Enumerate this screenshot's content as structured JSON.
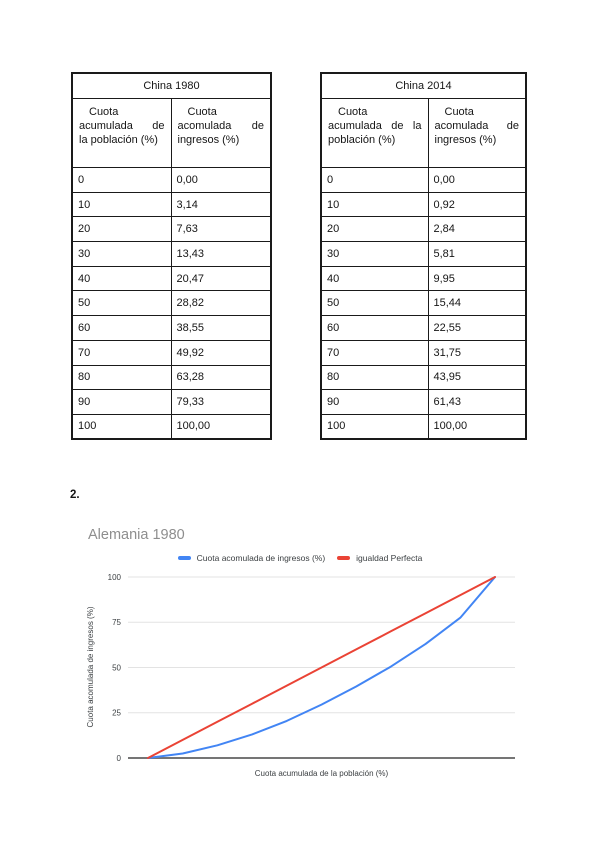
{
  "page": {
    "background": "#ffffff"
  },
  "exercise": {
    "item2_label": "2."
  },
  "tables": [
    {
      "title": "China 1980",
      "headers": [
        {
          "name": "population",
          "lines": [
            "Cuota",
            "acumulada de",
            "la población (%)"
          ]
        },
        {
          "name": "income",
          "lines": [
            "Cuota",
            "acomulada de",
            "ingresos (%)"
          ]
        }
      ],
      "rows": [
        [
          "0",
          "0,00"
        ],
        [
          "10",
          "3,14"
        ],
        [
          "20",
          "7,63"
        ],
        [
          "30",
          "13,43"
        ],
        [
          "40",
          "20,47"
        ],
        [
          "50",
          "28,82"
        ],
        [
          "60",
          "38,55"
        ],
        [
          "70",
          "49,92"
        ],
        [
          "80",
          "63,28"
        ],
        [
          "90",
          "79,33"
        ],
        [
          "100",
          "100,00"
        ]
      ]
    },
    {
      "title": "China 2014",
      "headers": [
        {
          "name": "population",
          "lines": [
            "Cuota",
            "acumulada de la",
            "población (%)"
          ]
        },
        {
          "name": "income",
          "lines": [
            "Cuota",
            "acomulada de",
            "ingresos (%)"
          ]
        }
      ],
      "rows": [
        [
          "0",
          "0,00"
        ],
        [
          "10",
          "0,92"
        ],
        [
          "20",
          "2,84"
        ],
        [
          "30",
          "5,81"
        ],
        [
          "40",
          "9,95"
        ],
        [
          "50",
          "15,44"
        ],
        [
          "60",
          "22,55"
        ],
        [
          "70",
          "31,75"
        ],
        [
          "80",
          "43,95"
        ],
        [
          "90",
          "61,43"
        ],
        [
          "100",
          "100,00"
        ]
      ]
    }
  ],
  "chart_data": {
    "type": "line",
    "title": "Alemania 1980",
    "xlabel": "Cuota acumulada de la población (%)",
    "ylabel": "Cuota acomulada de ingresos (%)",
    "x": [
      0,
      10,
      20,
      30,
      40,
      50,
      60,
      70,
      80,
      90,
      100
    ],
    "series": [
      {
        "name": "Cuota acomulada de ingresos (%)",
        "color": "#4285f4",
        "values": [
          0,
          2.5,
          7,
          13,
          20.5,
          29.5,
          39.5,
          50.5,
          63,
          77.5,
          100
        ]
      },
      {
        "name": "igualdad Perfecta",
        "color": "#ea4335",
        "values": [
          0,
          10,
          20,
          30,
          40,
          50,
          60,
          70,
          80,
          90,
          100
        ]
      }
    ],
    "y_ticks": [
      0,
      25,
      50,
      75,
      100
    ],
    "ylim": [
      0,
      100
    ],
    "xlim": [
      0,
      100
    ],
    "grid": true,
    "legend_position": "top",
    "axis_color": "#757575",
    "gridline_color": "#e3e3e3",
    "text_color": "#3c4043",
    "title_color": "#8e8e8e"
  }
}
